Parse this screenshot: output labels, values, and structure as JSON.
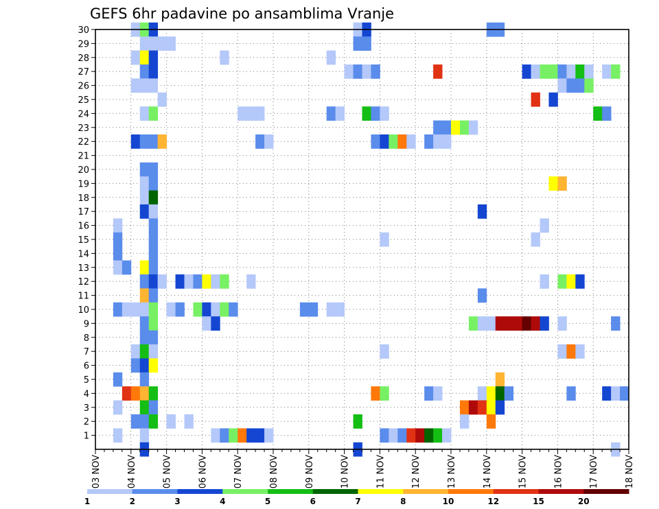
{
  "chart_data": {
    "type": "heatmap",
    "title": "GEFS 6hr padavine po ansamblima Vranje",
    "xlabel": "",
    "ylabel": "",
    "x_tick_labels": [
      "03 NOV",
      "04 NOV",
      "05 NOV",
      "06 NOV",
      "07 NOV",
      "08 NOV",
      "09 NOV",
      "10 NOV",
      "11 NOV",
      "12 NOV",
      "13 NOV",
      "14 NOV",
      "15 NOV",
      "16 NOV",
      "17 NOV",
      "18 NOV"
    ],
    "y_tick_labels": [
      "1",
      "2",
      "3",
      "4",
      "5",
      "6",
      "7",
      "8",
      "9",
      "10",
      "11",
      "12",
      "13",
      "14",
      "15",
      "16",
      "17",
      "18",
      "19",
      "20",
      "21",
      "22",
      "23",
      "24",
      "25",
      "26",
      "27",
      "28",
      "29",
      "30"
    ],
    "ylim": [
      0,
      30
    ],
    "step_hours": 6,
    "grid": true,
    "colorbar": {
      "labels": [
        "1",
        "2",
        "3",
        "4",
        "5",
        "6",
        "7",
        "8",
        "10",
        "12",
        "15",
        "20"
      ],
      "colors": [
        "#b4c8fa",
        "#5a8ceb",
        "#1446d2",
        "#78f064",
        "#14be14",
        "#006400",
        "#ffff00",
        "#ffb432",
        "#ff780a",
        "#e13214",
        "#af0a0a",
        "#640000"
      ]
    },
    "cells": [
      [
        4,
        30,
        1
      ],
      [
        5,
        30,
        4
      ],
      [
        6,
        30,
        3
      ],
      [
        29,
        30,
        1
      ],
      [
        30,
        30,
        3
      ],
      [
        44,
        30,
        2
      ],
      [
        45,
        30,
        2
      ],
      [
        5,
        29,
        1
      ],
      [
        6,
        29,
        1
      ],
      [
        7,
        29,
        1
      ],
      [
        8,
        29,
        1
      ],
      [
        29,
        29,
        2
      ],
      [
        30,
        29,
        2
      ],
      [
        4,
        28,
        1
      ],
      [
        5,
        28,
        7
      ],
      [
        6,
        28,
        3
      ],
      [
        14,
        28,
        1
      ],
      [
        26,
        28,
        1
      ],
      [
        5,
        27,
        2
      ],
      [
        6,
        27,
        3
      ],
      [
        28,
        27,
        1
      ],
      [
        29,
        27,
        2
      ],
      [
        30,
        27,
        1
      ],
      [
        31,
        27,
        2
      ],
      [
        38,
        27,
        10
      ],
      [
        48,
        27,
        3
      ],
      [
        49,
        27,
        1
      ],
      [
        50,
        27,
        4
      ],
      [
        51,
        27,
        4
      ],
      [
        52,
        27,
        2
      ],
      [
        53,
        27,
        1
      ],
      [
        54,
        27,
        5
      ],
      [
        55,
        27,
        1
      ],
      [
        57,
        27,
        1
      ],
      [
        58,
        27,
        4
      ],
      [
        4,
        26,
        1
      ],
      [
        5,
        26,
        1
      ],
      [
        6,
        26,
        1
      ],
      [
        52,
        26,
        1
      ],
      [
        53,
        26,
        2
      ],
      [
        54,
        26,
        2
      ],
      [
        55,
        26,
        4
      ],
      [
        7,
        25,
        1
      ],
      [
        49,
        25,
        10
      ],
      [
        51,
        25,
        3
      ],
      [
        5,
        24,
        1
      ],
      [
        6,
        24,
        4
      ],
      [
        16,
        24,
        1
      ],
      [
        17,
        24,
        1
      ],
      [
        18,
        24,
        1
      ],
      [
        26,
        24,
        2
      ],
      [
        27,
        24,
        1
      ],
      [
        30,
        24,
        5
      ],
      [
        31,
        24,
        2
      ],
      [
        32,
        24,
        1
      ],
      [
        56,
        24,
        5
      ],
      [
        57,
        24,
        2
      ],
      [
        38,
        23,
        2
      ],
      [
        39,
        23,
        2
      ],
      [
        40,
        23,
        7
      ],
      [
        41,
        23,
        4
      ],
      [
        42,
        23,
        1
      ],
      [
        4,
        22,
        3
      ],
      [
        5,
        22,
        2
      ],
      [
        6,
        22,
        2
      ],
      [
        7,
        22,
        8
      ],
      [
        18,
        22,
        2
      ],
      [
        19,
        22,
        1
      ],
      [
        31,
        22,
        2
      ],
      [
        32,
        22,
        3
      ],
      [
        33,
        22,
        4
      ],
      [
        34,
        22,
        9
      ],
      [
        35,
        22,
        1
      ],
      [
        37,
        22,
        2
      ],
      [
        38,
        22,
        1
      ],
      [
        39,
        22,
        1
      ],
      [
        5,
        20,
        2
      ],
      [
        6,
        20,
        2
      ],
      [
        5,
        19,
        1
      ],
      [
        6,
        19,
        2
      ],
      [
        51,
        19,
        7
      ],
      [
        52,
        19,
        8
      ],
      [
        5,
        18,
        1
      ],
      [
        6,
        18,
        6
      ],
      [
        5,
        17,
        3
      ],
      [
        6,
        17,
        1
      ],
      [
        43,
        17,
        3
      ],
      [
        2,
        16,
        1
      ],
      [
        6,
        16,
        2
      ],
      [
        50,
        16,
        1
      ],
      [
        2,
        15,
        2
      ],
      [
        6,
        15,
        2
      ],
      [
        32,
        15,
        1
      ],
      [
        49,
        15,
        1
      ],
      [
        2,
        14,
        2
      ],
      [
        6,
        14,
        2
      ],
      [
        2,
        13,
        1
      ],
      [
        3,
        13,
        2
      ],
      [
        5,
        13,
        7
      ],
      [
        6,
        13,
        2
      ],
      [
        5,
        12,
        2
      ],
      [
        6,
        12,
        3
      ],
      [
        7,
        12,
        1
      ],
      [
        9,
        12,
        3
      ],
      [
        10,
        12,
        1
      ],
      [
        11,
        12,
        2
      ],
      [
        12,
        12,
        7
      ],
      [
        13,
        12,
        1
      ],
      [
        14,
        12,
        4
      ],
      [
        17,
        12,
        1
      ],
      [
        50,
        12,
        1
      ],
      [
        52,
        12,
        4
      ],
      [
        53,
        12,
        7
      ],
      [
        54,
        12,
        3
      ],
      [
        5,
        11,
        8
      ],
      [
        6,
        11,
        2
      ],
      [
        43,
        11,
        2
      ],
      [
        2,
        10,
        2
      ],
      [
        3,
        10,
        1
      ],
      [
        4,
        10,
        1
      ],
      [
        5,
        10,
        1
      ],
      [
        6,
        10,
        4
      ],
      [
        8,
        10,
        1
      ],
      [
        9,
        10,
        2
      ],
      [
        11,
        10,
        4
      ],
      [
        12,
        10,
        3
      ],
      [
        13,
        10,
        1
      ],
      [
        14,
        10,
        4
      ],
      [
        15,
        10,
        2
      ],
      [
        23,
        10,
        2
      ],
      [
        24,
        10,
        2
      ],
      [
        26,
        10,
        1
      ],
      [
        27,
        10,
        1
      ],
      [
        5,
        9,
        2
      ],
      [
        6,
        9,
        4
      ],
      [
        12,
        9,
        1
      ],
      [
        13,
        9,
        3
      ],
      [
        42,
        9,
        4
      ],
      [
        43,
        9,
        1
      ],
      [
        44,
        9,
        1
      ],
      [
        45,
        9,
        11
      ],
      [
        46,
        9,
        11
      ],
      [
        47,
        9,
        11
      ],
      [
        48,
        9,
        12
      ],
      [
        49,
        9,
        11
      ],
      [
        50,
        9,
        3
      ],
      [
        52,
        9,
        1
      ],
      [
        58,
        9,
        2
      ],
      [
        5,
        8,
        2
      ],
      [
        6,
        8,
        2
      ],
      [
        4,
        7,
        1
      ],
      [
        5,
        7,
        5
      ],
      [
        6,
        7,
        1
      ],
      [
        32,
        7,
        1
      ],
      [
        52,
        7,
        1
      ],
      [
        53,
        7,
        9
      ],
      [
        54,
        7,
        1
      ],
      [
        4,
        6,
        2
      ],
      [
        5,
        6,
        3
      ],
      [
        6,
        6,
        7
      ],
      [
        2,
        5,
        2
      ],
      [
        5,
        5,
        2
      ],
      [
        45,
        5,
        8
      ],
      [
        3,
        4,
        10
      ],
      [
        4,
        4,
        9
      ],
      [
        5,
        4,
        8
      ],
      [
        6,
        4,
        5
      ],
      [
        31,
        4,
        9
      ],
      [
        32,
        4,
        4
      ],
      [
        37,
        4,
        2
      ],
      [
        38,
        4,
        1
      ],
      [
        43,
        4,
        1
      ],
      [
        44,
        4,
        7
      ],
      [
        45,
        4,
        6
      ],
      [
        46,
        4,
        2
      ],
      [
        53,
        4,
        2
      ],
      [
        57,
        4,
        3
      ],
      [
        58,
        4,
        1
      ],
      [
        59,
        4,
        2
      ],
      [
        2,
        3,
        1
      ],
      [
        5,
        3,
        5
      ],
      [
        6,
        3,
        2
      ],
      [
        41,
        3,
        9
      ],
      [
        42,
        3,
        11
      ],
      [
        43,
        3,
        10
      ],
      [
        44,
        3,
        7
      ],
      [
        45,
        3,
        3
      ],
      [
        4,
        2,
        2
      ],
      [
        5,
        2,
        2
      ],
      [
        6,
        2,
        5
      ],
      [
        8,
        2,
        1
      ],
      [
        10,
        2,
        1
      ],
      [
        29,
        2,
        5
      ],
      [
        41,
        2,
        1
      ],
      [
        44,
        2,
        9
      ],
      [
        2,
        1,
        1
      ],
      [
        5,
        1,
        1
      ],
      [
        13,
        1,
        1
      ],
      [
        14,
        1,
        2
      ],
      [
        15,
        1,
        4
      ],
      [
        16,
        1,
        9
      ],
      [
        17,
        1,
        3
      ],
      [
        18,
        1,
        3
      ],
      [
        19,
        1,
        1
      ],
      [
        32,
        1,
        2
      ],
      [
        33,
        1,
        1
      ],
      [
        34,
        1,
        2
      ],
      [
        35,
        1,
        10
      ],
      [
        36,
        1,
        11
      ],
      [
        37,
        1,
        6
      ],
      [
        38,
        1,
        5
      ],
      [
        39,
        1,
        1
      ],
      [
        5,
        0,
        3
      ],
      [
        29,
        0,
        3
      ],
      [
        58,
        0,
        1
      ]
    ]
  }
}
